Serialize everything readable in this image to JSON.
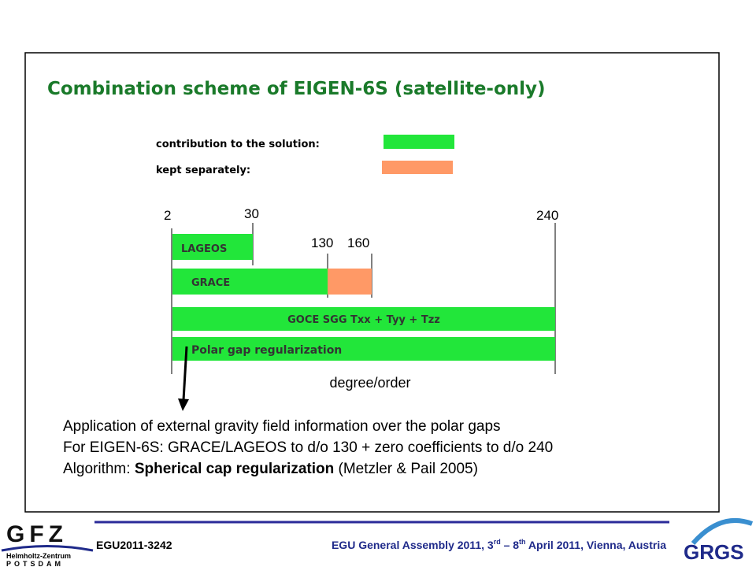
{
  "title": "Combination scheme of EIGEN-6S (satellite-only)",
  "legend": [
    {
      "label": "contribution to the solution:",
      "color": "#22e63a"
    },
    {
      "label": "kept separately:",
      "color": "#ff9966"
    }
  ],
  "degrees": [
    "2",
    "30",
    "130",
    "160",
    "240"
  ],
  "bars": [
    "LAGEOS",
    "GRACE",
    "GOCE SGG Txx + Tyy + Tzz",
    "Polar gap regularization"
  ],
  "axis_label": "degree/order",
  "notes": [
    "Application of external gravity field information over the polar gaps",
    "For EIGEN-6S: GRACE/LAGEOS to d/o 130 + zero coefficients to d/o 240"
  ],
  "algorithm": {
    "prefix": "Algorithm: ",
    "bold": "Spherical cap regularization",
    "suffix": " (Metzler & Pail 2005)"
  },
  "footer": {
    "id": "EGU2011-3242",
    "event": [
      "EGU General Assembly 2011, 3",
      "rd",
      " – 8",
      "th",
      " April 2011, Vienna, Austria"
    ],
    "left_logo": [
      "GFZ",
      "Helmholtz-Zentrum",
      "POTSDAM"
    ],
    "right_logo": "GRGS"
  }
}
